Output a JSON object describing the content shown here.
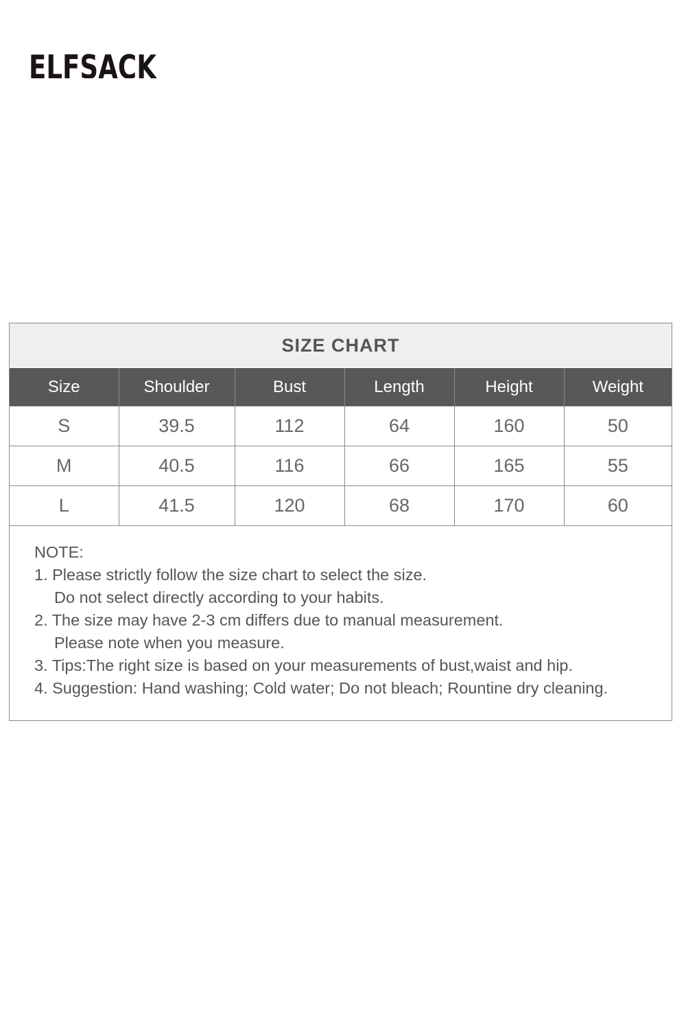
{
  "brand": {
    "logo_text": "ELFSACK"
  },
  "size_chart": {
    "title": "SIZE CHART",
    "headers": [
      "Size",
      "Shoulder",
      "Bust",
      "Length",
      "Height",
      "Weight"
    ],
    "rows": [
      [
        "S",
        "39.5",
        "112",
        "64",
        "160",
        "50"
      ],
      [
        "M",
        "40.5",
        "116",
        "66",
        "165",
        "55"
      ],
      [
        "L",
        "41.5",
        "120",
        "68",
        "170",
        "60"
      ]
    ]
  },
  "notes": {
    "heading": "NOTE:",
    "lines": [
      "1. Please strictly follow the size chart to select the size.",
      "Do not select directly according to your habits.",
      "2. The size may have 2-3 cm differs due to manual measurement.",
      "Please note when you measure.",
      "3. Tips:The right size is based on your measurements of bust,waist and hip.",
      "4. Suggestion: Hand washing; Cold water; Do not bleach; Rountine dry cleaning."
    ]
  }
}
